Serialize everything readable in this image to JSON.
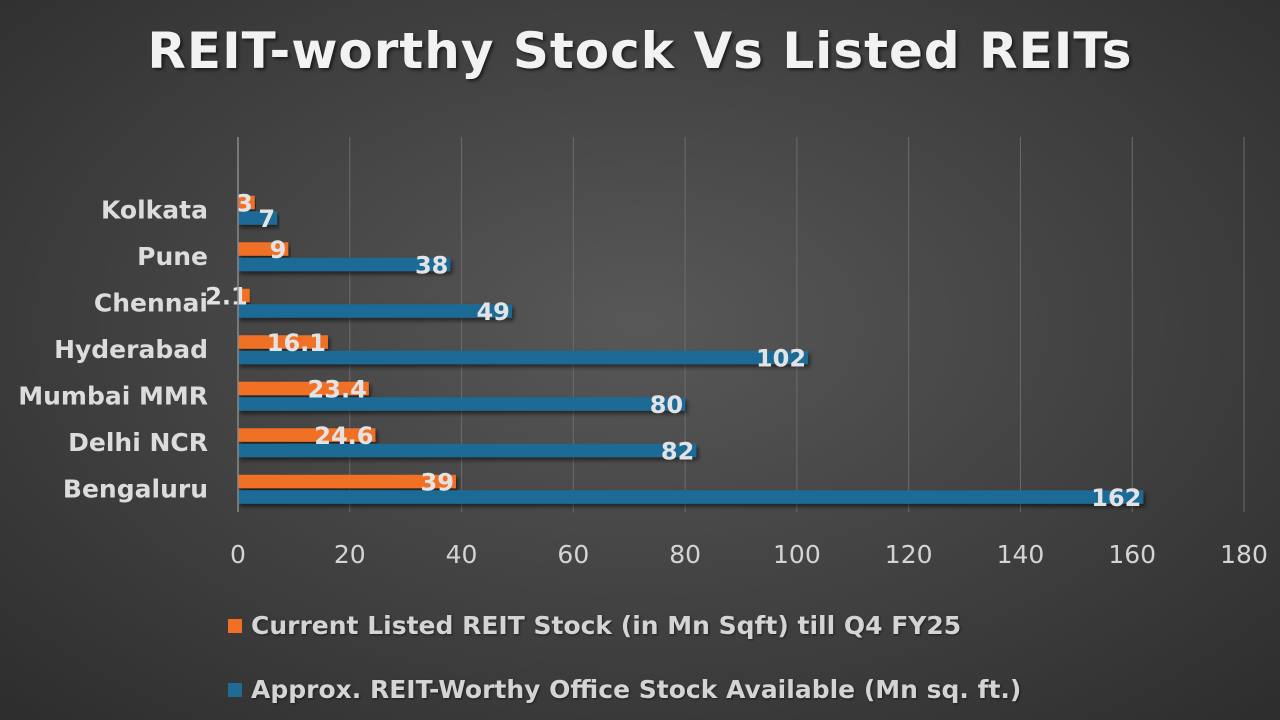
{
  "chart_data": {
    "type": "bar",
    "orientation": "horizontal",
    "title": "REIT-worthy Stock Vs Listed REITs",
    "categories": [
      "Kolkata",
      "Pune",
      "Chennai",
      "Hyderabad",
      "Mumbai MMR",
      "Delhi NCR",
      "Bengaluru"
    ],
    "series": [
      {
        "name": "Current Listed REIT Stock (in Mn Sqft)  till Q4 FY25",
        "values": [
          3,
          9,
          2.1,
          16.1,
          23.4,
          24.6,
          39
        ],
        "labels": [
          "3",
          "9",
          "2.1",
          "16.1",
          "23.4",
          "24.6",
          "39"
        ],
        "color": "#f07026"
      },
      {
        "name": "Approx. REIT-Worthy Office Stock Available (Mn sq. ft.)",
        "values": [
          7,
          38,
          49,
          102,
          80,
          82,
          162
        ],
        "labels": [
          "7",
          "38",
          "49",
          "102",
          "80",
          "82",
          "162"
        ],
        "color": "#1f6b96"
      }
    ],
    "xlim": [
      0,
      180
    ],
    "xticks": [
      "0",
      "20",
      "40",
      "60",
      "80",
      "100",
      "120",
      "140",
      "160",
      "180"
    ],
    "grid": true,
    "legend_position": "bottom-left"
  }
}
